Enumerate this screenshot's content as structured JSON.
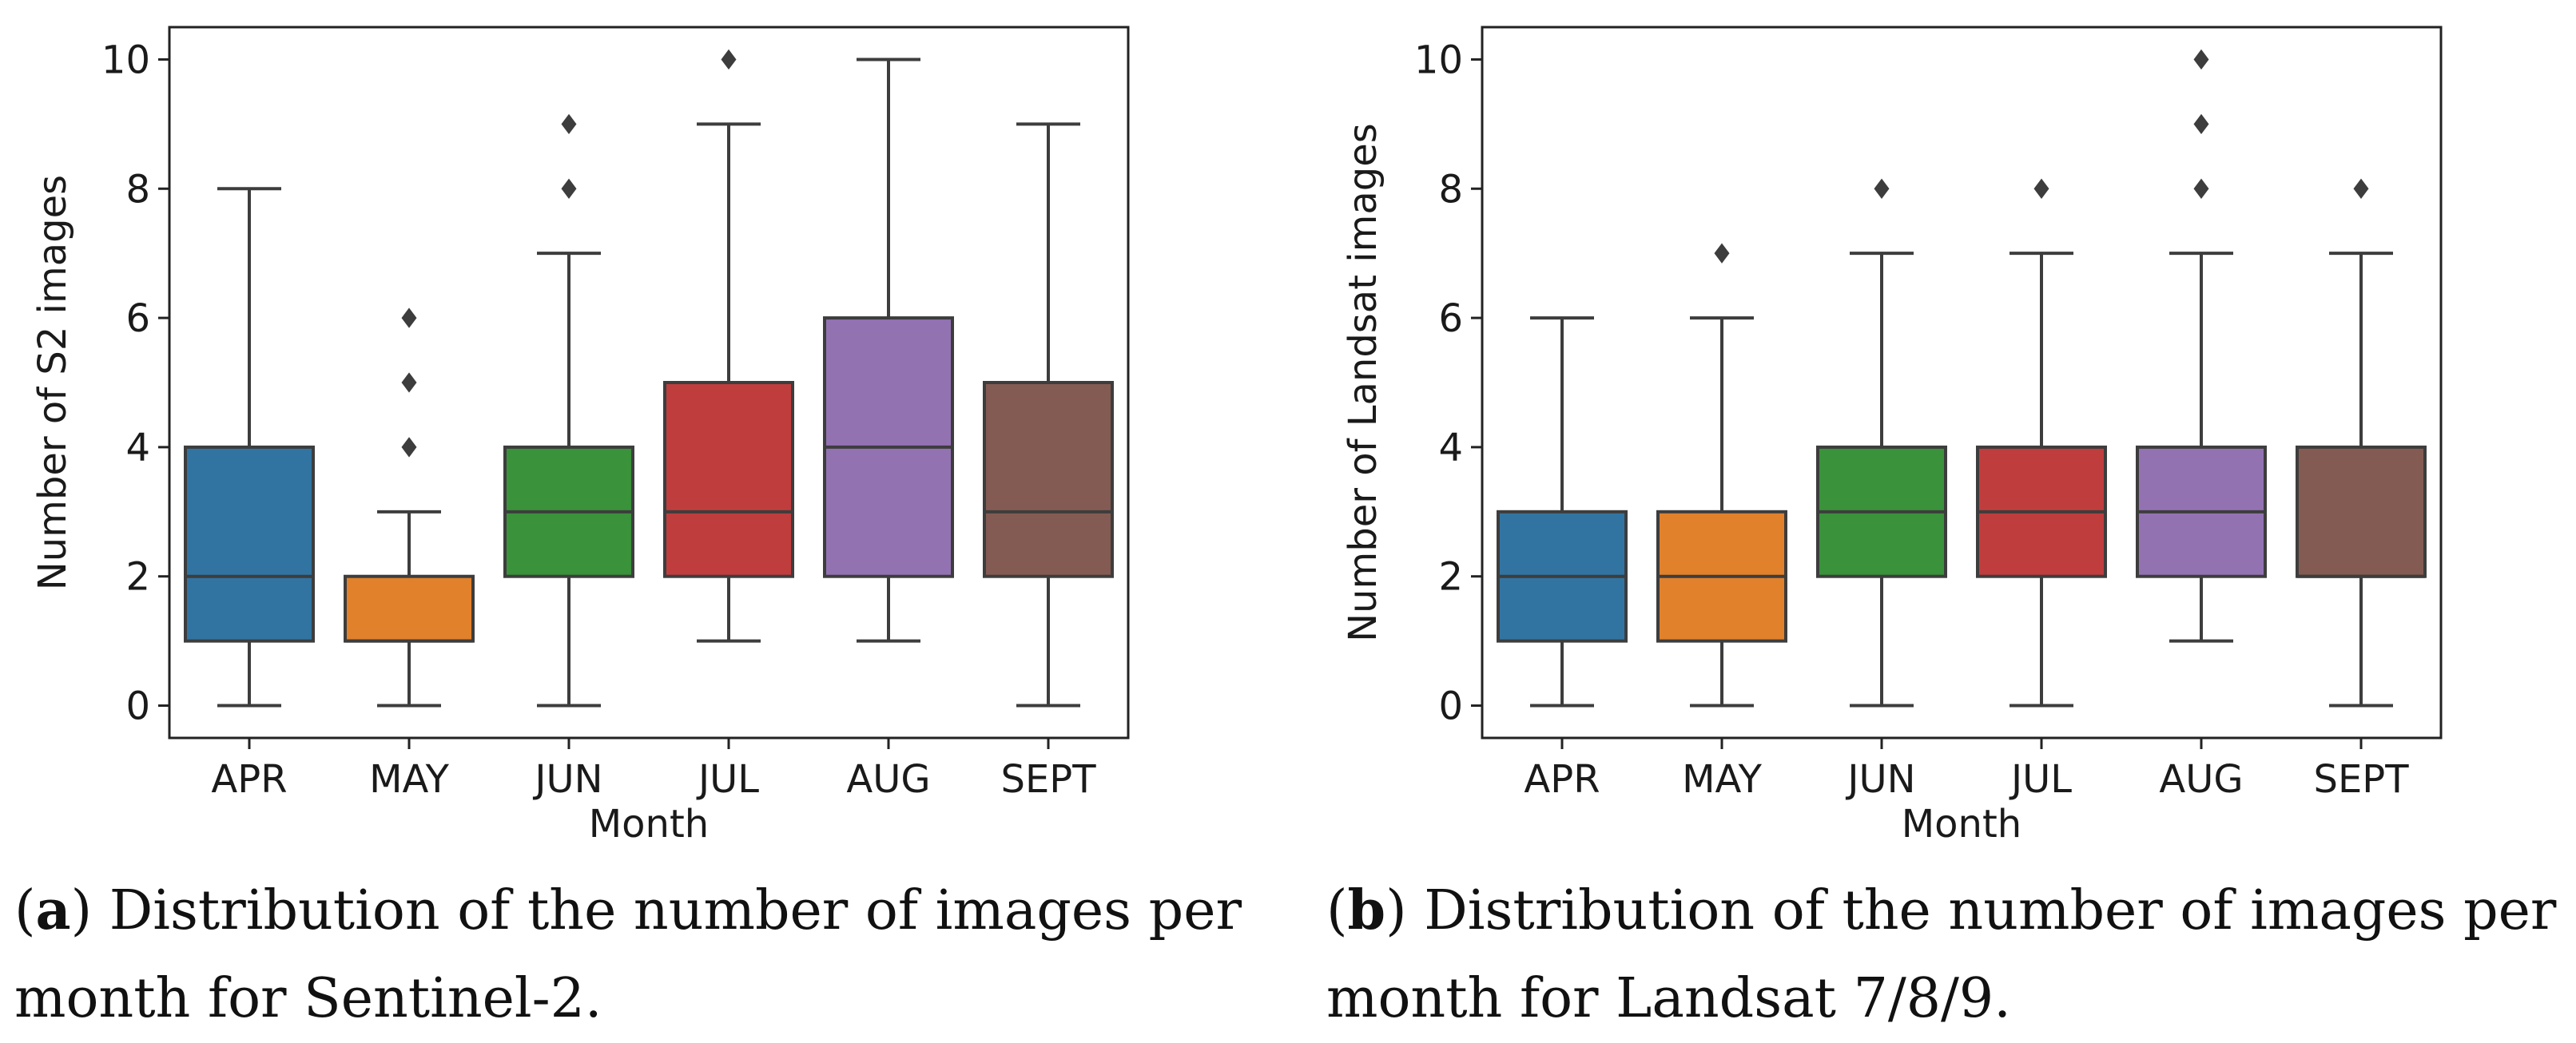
{
  "chart_data": [
    {
      "type": "boxplot",
      "panel": "a",
      "categories": [
        "APR",
        "MAY",
        "JUN",
        "JUL",
        "AUG",
        "SEPT"
      ],
      "colors": [
        "#3274a1",
        "#e1812c",
        "#3a923a",
        "#c03d3e",
        "#9372b2",
        "#845b53"
      ],
      "boxes": [
        {
          "whisker_low": 0,
          "q1": 1,
          "median": 2,
          "q3": 4,
          "whisker_high": 8,
          "outliers": []
        },
        {
          "whisker_low": 0,
          "q1": 1,
          "median": 1,
          "q3": 2,
          "whisker_high": 3,
          "outliers": [
            4,
            5,
            6
          ]
        },
        {
          "whisker_low": 0,
          "q1": 2,
          "median": 3,
          "q3": 4,
          "whisker_high": 7,
          "outliers": [
            8,
            9
          ]
        },
        {
          "whisker_low": 1,
          "q1": 2,
          "median": 3,
          "q3": 5,
          "whisker_high": 9,
          "outliers": [
            10
          ]
        },
        {
          "whisker_low": 1,
          "q1": 2,
          "median": 4,
          "q3": 6,
          "whisker_high": 10,
          "outliers": []
        },
        {
          "whisker_low": 0,
          "q1": 2,
          "median": 3,
          "q3": 5,
          "whisker_high": 9,
          "outliers": []
        }
      ],
      "xlabel": "Month",
      "ylabel": "Number of S2 images",
      "ylim": [
        -0.5,
        10.5
      ],
      "yticks": [
        0,
        2,
        4,
        6,
        8,
        10
      ],
      "caption_label": "a",
      "caption_text": ") Distribution of the number of images per month for Sentinel-2."
    },
    {
      "type": "boxplot",
      "panel": "b",
      "categories": [
        "APR",
        "MAY",
        "JUN",
        "JUL",
        "AUG",
        "SEPT"
      ],
      "colors": [
        "#3274a1",
        "#e1812c",
        "#3a923a",
        "#c03d3e",
        "#9372b2",
        "#845b53"
      ],
      "boxes": [
        {
          "whisker_low": 0,
          "q1": 1,
          "median": 2,
          "q3": 3,
          "whisker_high": 6,
          "outliers": []
        },
        {
          "whisker_low": 0,
          "q1": 1,
          "median": 2,
          "q3": 3,
          "whisker_high": 6,
          "outliers": [
            7
          ]
        },
        {
          "whisker_low": 0,
          "q1": 2,
          "median": 3,
          "q3": 4,
          "whisker_high": 7,
          "outliers": [
            8
          ]
        },
        {
          "whisker_low": 0,
          "q1": 2,
          "median": 3,
          "q3": 4,
          "whisker_high": 7,
          "outliers": [
            8
          ]
        },
        {
          "whisker_low": 1,
          "q1": 2,
          "median": 3,
          "q3": 4,
          "whisker_high": 7,
          "outliers": [
            8,
            9,
            10
          ]
        },
        {
          "whisker_low": 0,
          "q1": 2,
          "median": 2,
          "q3": 4,
          "whisker_high": 7,
          "outliers": [
            8
          ]
        }
      ],
      "xlabel": "Month",
      "ylabel": "Number of Landsat images",
      "ylim": [
        -0.5,
        10.5
      ],
      "yticks": [
        0,
        2,
        4,
        6,
        8,
        10
      ],
      "caption_label": "b",
      "caption_text": ") Distribution of the number of images per month for Landsat 7/8/9."
    }
  ]
}
